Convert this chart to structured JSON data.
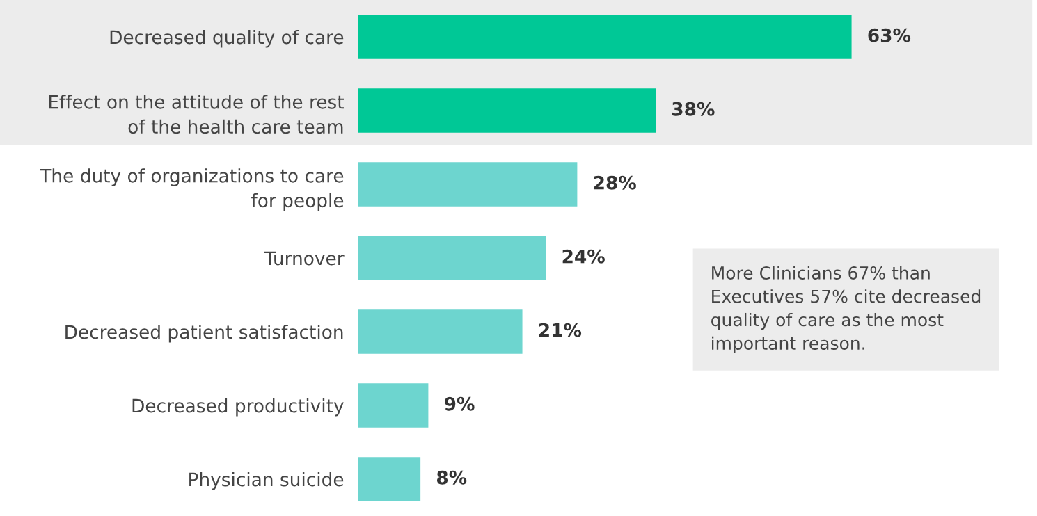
{
  "chart_data": {
    "type": "bar",
    "orientation": "horizontal",
    "categories": [
      "Decreased quality of care",
      "Effect on the attitude of the rest\nof the health care team",
      "The duty of organizations to care\nfor people",
      "Turnover",
      "Decreased patient satisfaction",
      "Decreased productivity",
      "Physician suicide"
    ],
    "values": [
      63,
      38,
      28,
      24,
      21,
      9,
      8
    ],
    "colors": [
      "#00c896",
      "#00c896",
      "#6dd5cf",
      "#6dd5cf",
      "#6dd5cf",
      "#6dd5cf",
      "#6dd5cf"
    ],
    "value_labels": [
      "63%",
      "38%",
      "28%",
      "24%",
      "21%",
      "9%",
      "8%"
    ],
    "grid": false,
    "legend": false,
    "bands": [
      {
        "axis": "y",
        "from": "Decreased quality of care",
        "to": "Effect on the attitude of the rest\nof the health care team",
        "color": "#ececec"
      }
    ],
    "annotations": [
      "More Clinicians 67% than\nExecutives 57% cite decreased\nquality of care as the most\nimportant reason."
    ]
  }
}
